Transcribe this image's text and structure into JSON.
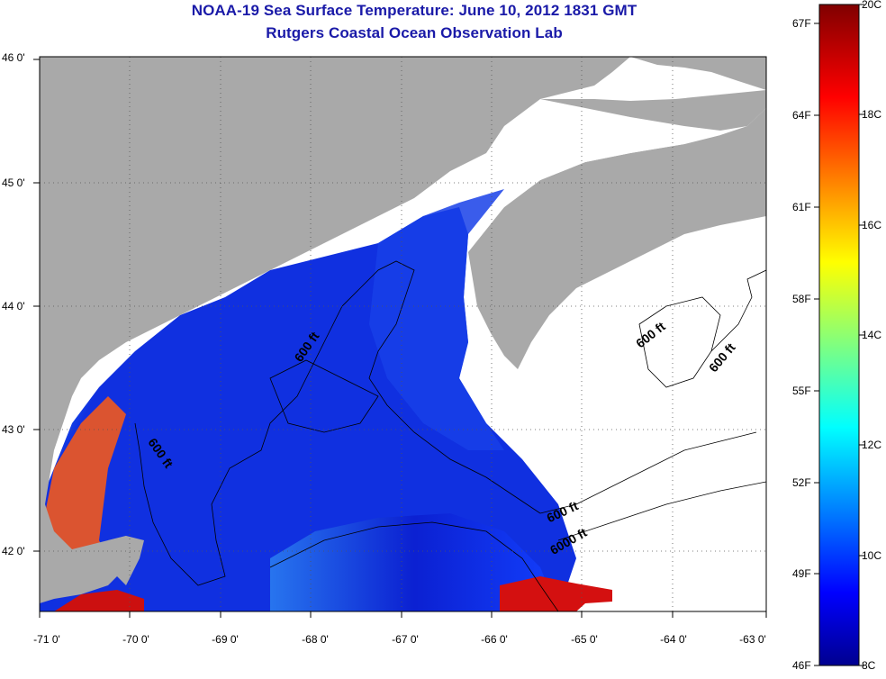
{
  "header": {
    "title": "NOAA-19 Sea Surface Temperature:  June 10, 2012 1831 GMT",
    "subtitle": "Rutgers Coastal Ocean Observation Lab"
  },
  "axes": {
    "lat_ticks": [
      "46 0'",
      "45 0'",
      "44 0'",
      "43 0'",
      "42 0'"
    ],
    "lon_ticks": [
      "-71 0'",
      "-70 0'",
      "-69 0'",
      "-68 0'",
      "-67 0'",
      "-66 0'",
      "-65 0'",
      "-64 0'",
      "-63 0'"
    ]
  },
  "colorbar": {
    "fahrenheit_ticks": [
      "67F",
      "64F",
      "61F",
      "58F",
      "55F",
      "52F",
      "49F",
      "46F"
    ],
    "celsius_ticks": [
      "20C",
      "18C",
      "16C",
      "14C",
      "12C",
      "10C",
      "8C"
    ],
    "range_c": [
      8,
      20
    ],
    "colors": [
      "#00008f",
      "#0000ff",
      "#0080ff",
      "#00ffff",
      "#80ff80",
      "#ffff00",
      "#ff8000",
      "#ff0000",
      "#800000"
    ]
  },
  "contours": {
    "labels": [
      "600 ft",
      "600 ft",
      "600 ft",
      "600 ft",
      "600 ft",
      "6000 ft"
    ]
  },
  "colors": {
    "land": "#a9a9a9",
    "no_data": "#ffffff",
    "title": "#1a1aa8"
  }
}
